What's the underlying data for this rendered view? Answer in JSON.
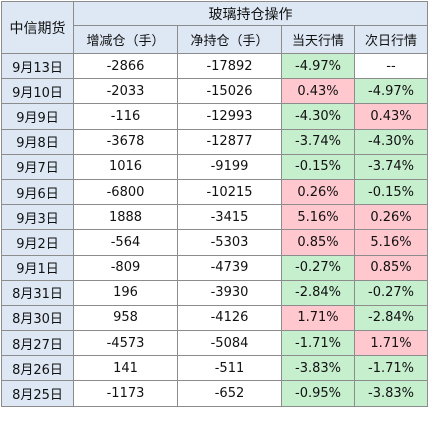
{
  "header": {
    "company": "中信期货",
    "title": "玻璃持仓操作",
    "col_change": "增减仓（手）",
    "col_net": "净持仓（手）",
    "col_today": "当天行情",
    "col_next": "次日行情"
  },
  "rows": [
    {
      "date": "9月13日",
      "change": "-2866",
      "net": "-17892",
      "today": "-4.97%",
      "next": "--"
    },
    {
      "date": "9月10日",
      "change": "-2033",
      "net": "-15026",
      "today": "0.43%",
      "next": "-4.97%"
    },
    {
      "date": "9月9日",
      "change": "-116",
      "net": "-12993",
      "today": "-4.30%",
      "next": "0.43%"
    },
    {
      "date": "9月8日",
      "change": "-3678",
      "net": "-12877",
      "today": "-3.74%",
      "next": "-4.30%"
    },
    {
      "date": "9月7日",
      "change": "1016",
      "net": "-9199",
      "today": "-0.15%",
      "next": "-3.74%"
    },
    {
      "date": "9月6日",
      "change": "-6800",
      "net": "-10215",
      "today": "0.26%",
      "next": "-0.15%"
    },
    {
      "date": "9月3日",
      "change": "1888",
      "net": "-3415",
      "today": "5.16%",
      "next": "0.26%"
    },
    {
      "date": "9月2日",
      "change": "-564",
      "net": "-5303",
      "today": "0.85%",
      "next": "5.16%"
    },
    {
      "date": "9月1日",
      "change": "-809",
      "net": "-4739",
      "today": "-0.27%",
      "next": "0.85%"
    },
    {
      "date": "8月31日",
      "change": "196",
      "net": "-3930",
      "today": "-2.84%",
      "next": "-0.27%"
    },
    {
      "date": "8月30日",
      "change": "958",
      "net": "-4126",
      "today": "1.71%",
      "next": "-2.84%"
    },
    {
      "date": "8月27日",
      "change": "-4573",
      "net": "-5084",
      "today": "-1.71%",
      "next": "1.71%"
    },
    {
      "date": "8月26日",
      "change": "141",
      "net": "-511",
      "today": "-3.83%",
      "next": "-1.71%"
    },
    {
      "date": "8月25日",
      "change": "-1173",
      "net": "-652",
      "today": "-0.95%",
      "next": "-3.83%"
    }
  ],
  "colors": {
    "header_bg": "#dde8f4",
    "up_bg": "#ffc7ce",
    "down_bg": "#c6efce",
    "grid": "#8c8c8c"
  }
}
